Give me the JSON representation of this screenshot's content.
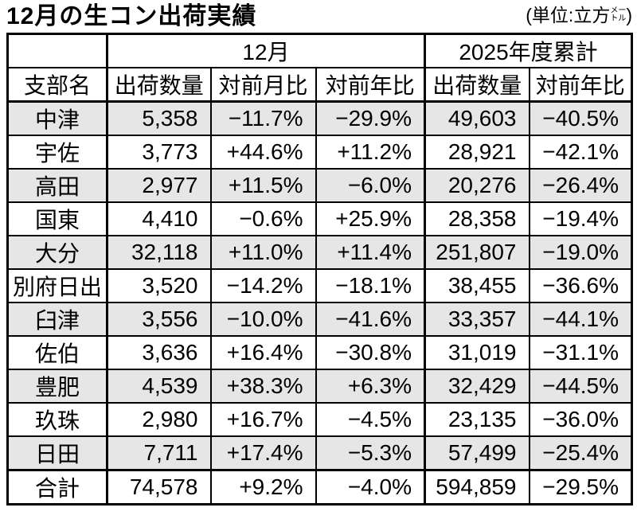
{
  "title": "12月の生コン出荷実績",
  "unit": {
    "prefix": "(単位:立方",
    "stack_top": "メー",
    "stack_bottom": "トル",
    "suffix": ")"
  },
  "colors": {
    "text": "#000000",
    "border": "#000000",
    "row_shade": "#e6e6e6",
    "background": "#ffffff"
  },
  "table": {
    "group_headers": {
      "blank": "",
      "month": "12月",
      "fiscal": "2025年度累計"
    },
    "columns": [
      "支部名",
      "出荷数量",
      "対前月比",
      "対前年比",
      "出荷数量",
      "対前年比"
    ],
    "rows": [
      {
        "name": "中津",
        "dec_qty": "5,358",
        "dec_mom": "−11.7%",
        "dec_yoy": "−29.9%",
        "cum_qty": "49,603",
        "cum_yoy": "−40.5%"
      },
      {
        "name": "宇佐",
        "dec_qty": "3,773",
        "dec_mom": "+44.6%",
        "dec_yoy": "+11.2%",
        "cum_qty": "28,921",
        "cum_yoy": "−42.1%"
      },
      {
        "name": "高田",
        "dec_qty": "2,977",
        "dec_mom": "+11.5%",
        "dec_yoy": "−6.0%",
        "cum_qty": "20,276",
        "cum_yoy": "−26.4%"
      },
      {
        "name": "国東",
        "dec_qty": "4,410",
        "dec_mom": "−0.6%",
        "dec_yoy": "+25.9%",
        "cum_qty": "28,358",
        "cum_yoy": "−19.4%"
      },
      {
        "name": "大分",
        "dec_qty": "32,118",
        "dec_mom": "+11.0%",
        "dec_yoy": "+11.4%",
        "cum_qty": "251,807",
        "cum_yoy": "−19.0%"
      },
      {
        "name": "別府日出",
        "dec_qty": "3,520",
        "dec_mom": "−14.2%",
        "dec_yoy": "−18.1%",
        "cum_qty": "38,455",
        "cum_yoy": "−36.6%"
      },
      {
        "name": "臼津",
        "dec_qty": "3,556",
        "dec_mom": "−10.0%",
        "dec_yoy": "−41.6%",
        "cum_qty": "33,357",
        "cum_yoy": "−44.1%"
      },
      {
        "name": "佐伯",
        "dec_qty": "3,636",
        "dec_mom": "+16.4%",
        "dec_yoy": "−30.8%",
        "cum_qty": "31,019",
        "cum_yoy": "−31.1%"
      },
      {
        "name": "豊肥",
        "dec_qty": "4,539",
        "dec_mom": "+38.3%",
        "dec_yoy": "+6.3%",
        "cum_qty": "32,429",
        "cum_yoy": "−44.5%"
      },
      {
        "name": "玖珠",
        "dec_qty": "2,980",
        "dec_mom": "+16.7%",
        "dec_yoy": "−4.5%",
        "cum_qty": "23,135",
        "cum_yoy": "−36.0%"
      },
      {
        "name": "日田",
        "dec_qty": "7,711",
        "dec_mom": "+17.4%",
        "dec_yoy": "−5.3%",
        "cum_qty": "57,499",
        "cum_yoy": "−25.4%"
      }
    ],
    "total": {
      "name": "合計",
      "dec_qty": "74,578",
      "dec_mom": "+9.2%",
      "dec_yoy": "−4.0%",
      "cum_qty": "594,859",
      "cum_yoy": "−29.5%"
    }
  }
}
